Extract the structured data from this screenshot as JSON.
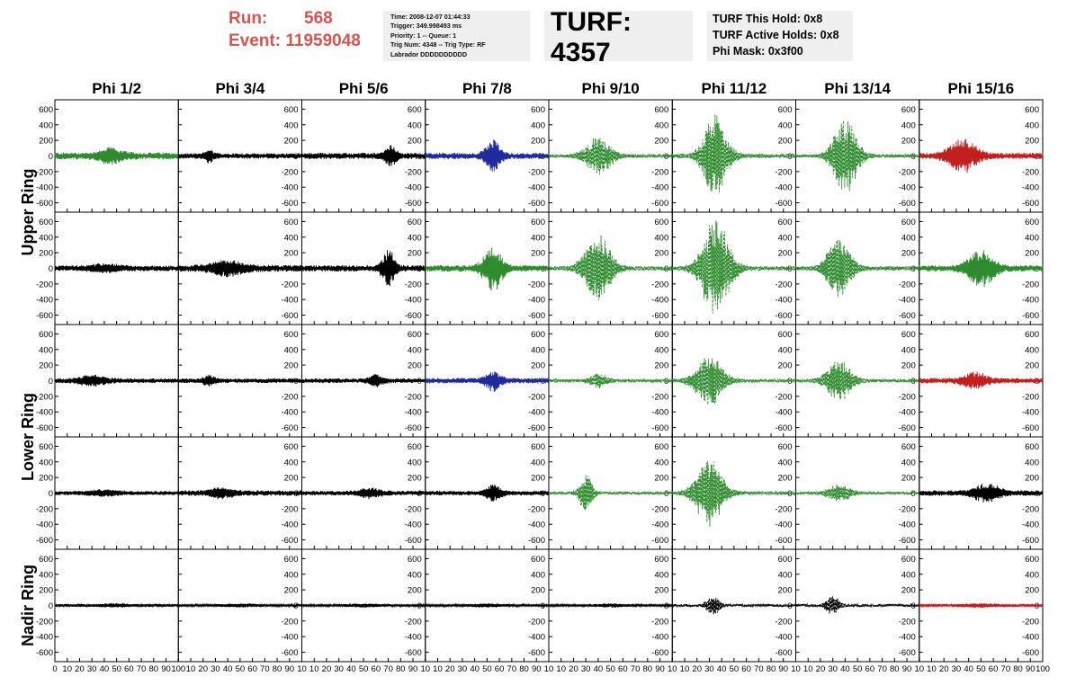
{
  "header": {
    "run_label": "Run:",
    "run_value": "568",
    "event_label": "Event:",
    "event_value": "11959048",
    "info_lines": [
      "Time: 2008-12-07 01:44:33",
      "Trigger: 349.998493 ms",
      "Priority: 1 -- Queue: 1",
      "Trig Num: 4348 -- Trig Type: RF",
      "Labrador DDDDDDDDDD"
    ],
    "turf": "TURF: 4357",
    "turf_lines": [
      "TURF This Hold: 0x8",
      "TURF Active Holds: 0x8",
      "Phi Mask: 0x3f00"
    ]
  },
  "colors": {
    "background": "#ffffff",
    "frame": "#000000",
    "info_box": "#efefef",
    "run_event": "#d9534f",
    "black": "#000000",
    "green": "#2e8b2e",
    "blue": "#1f2a9c",
    "red": "#c41f1f"
  },
  "chart_data": {
    "type": "line",
    "column_titles": [
      "Phi 1/2",
      "Phi 3/4",
      "Phi 5/6",
      "Phi 7/8",
      "Phi 9/10",
      "Phi 11/12",
      "Phi 13/14",
      "Phi 15/16"
    ],
    "row_titles": [
      "Upper Ring",
      "Lower Ring",
      "Nadir Ring"
    ],
    "y_tick_labels": [
      "600",
      "400",
      "200",
      "0",
      "-200",
      "-400",
      "-600"
    ],
    "y_ticks": [
      600,
      400,
      200,
      0,
      -200,
      -400,
      -600
    ],
    "ylim": [
      -720,
      720
    ],
    "xlim": [
      0,
      100
    ],
    "x_tick_labels_first": [
      "0",
      "10",
      "20",
      "30",
      "40",
      "50",
      "60",
      "70",
      "80",
      "90",
      "100"
    ],
    "x_tick_labels": [
      "",
      "10",
      "20",
      "30",
      "40",
      "50",
      "60",
      "70",
      "80",
      "90",
      "10"
    ],
    "x_tick_labels_last": [
      "",
      "10",
      "20",
      "30",
      "40",
      "50",
      "60",
      "70",
      "80",
      "90",
      "100"
    ],
    "traces": [
      [
        {
          "color": "green",
          "style": "solid",
          "amp": 45,
          "burst": {
            "center": 45,
            "width": 22,
            "amp": 80
          }
        },
        {
          "color": "black",
          "style": "solid",
          "amp": 35,
          "burst": {
            "center": 25,
            "width": 8,
            "amp": 70
          }
        },
        {
          "color": "black",
          "style": "solid",
          "amp": 40,
          "burst": {
            "center": 72,
            "width": 10,
            "amp": 120
          }
        },
        {
          "color": "blue",
          "style": "solid",
          "amp": 40,
          "burst": {
            "center": 55,
            "width": 14,
            "amp": 190
          }
        },
        {
          "color": "green",
          "style": "dashed",
          "amp": 25,
          "burst": {
            "center": 40,
            "width": 24,
            "amp": 230
          }
        },
        {
          "color": "green",
          "style": "dashed",
          "amp": 30,
          "burst": {
            "center": 35,
            "width": 22,
            "amp": 520
          }
        },
        {
          "color": "green",
          "style": "dashed",
          "amp": 25,
          "burst": {
            "center": 40,
            "width": 22,
            "amp": 480
          }
        },
        {
          "color": "red",
          "style": "solid",
          "amp": 40,
          "burst": {
            "center": 35,
            "width": 26,
            "amp": 210
          }
        }
      ],
      [
        {
          "color": "black",
          "style": "solid",
          "amp": 35,
          "burst": {
            "center": 40,
            "width": 30,
            "amp": 40
          }
        },
        {
          "color": "black",
          "style": "solid",
          "amp": 45,
          "burst": {
            "center": 40,
            "width": 30,
            "amp": 80
          }
        },
        {
          "color": "black",
          "style": "solid",
          "amp": 40,
          "burst": {
            "center": 70,
            "width": 12,
            "amp": 220
          }
        },
        {
          "color": "green",
          "style": "solid",
          "amp": 40,
          "burst": {
            "center": 55,
            "width": 18,
            "amp": 270
          }
        },
        {
          "color": "green",
          "style": "dashed",
          "amp": 30,
          "burst": {
            "center": 40,
            "width": 25,
            "amp": 420
          }
        },
        {
          "color": "green",
          "style": "dashed",
          "amp": 30,
          "burst": {
            "center": 35,
            "width": 26,
            "amp": 620
          }
        },
        {
          "color": "green",
          "style": "dashed",
          "amp": 30,
          "burst": {
            "center": 35,
            "width": 22,
            "amp": 380
          }
        },
        {
          "color": "green",
          "style": "solid",
          "amp": 40,
          "burst": {
            "center": 50,
            "width": 24,
            "amp": 220
          }
        }
      ],
      [
        {
          "color": "black",
          "style": "solid",
          "amp": 30,
          "burst": {
            "center": 30,
            "width": 25,
            "amp": 60
          }
        },
        {
          "color": "black",
          "style": "solid",
          "amp": 30,
          "burst": {
            "center": 25,
            "width": 10,
            "amp": 60
          }
        },
        {
          "color": "black",
          "style": "solid",
          "amp": 30,
          "burst": {
            "center": 60,
            "width": 12,
            "amp": 70
          }
        },
        {
          "color": "blue",
          "style": "solid",
          "amp": 35,
          "burst": {
            "center": 55,
            "width": 14,
            "amp": 120
          }
        },
        {
          "color": "green",
          "style": "dashed",
          "amp": 25,
          "burst": {
            "center": 40,
            "width": 15,
            "amp": 90
          }
        },
        {
          "color": "green",
          "style": "dashed",
          "amp": 25,
          "burst": {
            "center": 30,
            "width": 25,
            "amp": 330
          }
        },
        {
          "color": "green",
          "style": "dashed",
          "amp": 25,
          "burst": {
            "center": 35,
            "width": 22,
            "amp": 270
          }
        },
        {
          "color": "red",
          "style": "solid",
          "amp": 35,
          "burst": {
            "center": 45,
            "width": 22,
            "amp": 90
          }
        }
      ],
      [
        {
          "color": "black",
          "style": "solid",
          "amp": 25,
          "burst": {
            "center": 40,
            "width": 30,
            "amp": 30
          }
        },
        {
          "color": "black",
          "style": "solid",
          "amp": 35,
          "burst": {
            "center": 35,
            "width": 20,
            "amp": 60
          }
        },
        {
          "color": "black",
          "style": "solid",
          "amp": 30,
          "burst": {
            "center": 55,
            "width": 20,
            "amp": 50
          }
        },
        {
          "color": "black",
          "style": "solid",
          "amp": 30,
          "burst": {
            "center": 55,
            "width": 15,
            "amp": 90
          }
        },
        {
          "color": "green",
          "style": "dashed",
          "amp": 20,
          "burst": {
            "center": 30,
            "width": 12,
            "amp": 230
          }
        },
        {
          "color": "green",
          "style": "dashed",
          "amp": 25,
          "burst": {
            "center": 30,
            "width": 25,
            "amp": 420
          }
        },
        {
          "color": "green",
          "style": "dashed",
          "amp": 20,
          "burst": {
            "center": 35,
            "width": 22,
            "amp": 100
          }
        },
        {
          "color": "black",
          "style": "solid",
          "amp": 35,
          "burst": {
            "center": 55,
            "width": 25,
            "amp": 100
          }
        }
      ],
      [
        {
          "color": "black",
          "style": "solid",
          "amp": 18,
          "burst": {
            "center": 50,
            "width": 30,
            "amp": 15
          }
        },
        {
          "color": "black",
          "style": "solid",
          "amp": 15,
          "burst": {
            "center": 50,
            "width": 30,
            "amp": 15
          }
        },
        {
          "color": "black",
          "style": "solid",
          "amp": 15,
          "burst": {
            "center": 50,
            "width": 30,
            "amp": 15
          }
        },
        {
          "color": "black",
          "style": "solid",
          "amp": 15,
          "burst": {
            "center": 50,
            "width": 30,
            "amp": 15
          }
        },
        {
          "color": "black",
          "style": "solid",
          "amp": 15,
          "burst": {
            "center": 50,
            "width": 30,
            "amp": 15
          }
        },
        {
          "color": "black",
          "style": "dashed",
          "amp": 18,
          "burst": {
            "center": 33,
            "width": 12,
            "amp": 120
          }
        },
        {
          "color": "black",
          "style": "dashed",
          "amp": 18,
          "burst": {
            "center": 30,
            "width": 12,
            "amp": 120
          }
        },
        {
          "color": "red",
          "style": "solid",
          "amp": 20,
          "burst": {
            "center": 50,
            "width": 30,
            "amp": 15
          }
        }
      ]
    ]
  }
}
